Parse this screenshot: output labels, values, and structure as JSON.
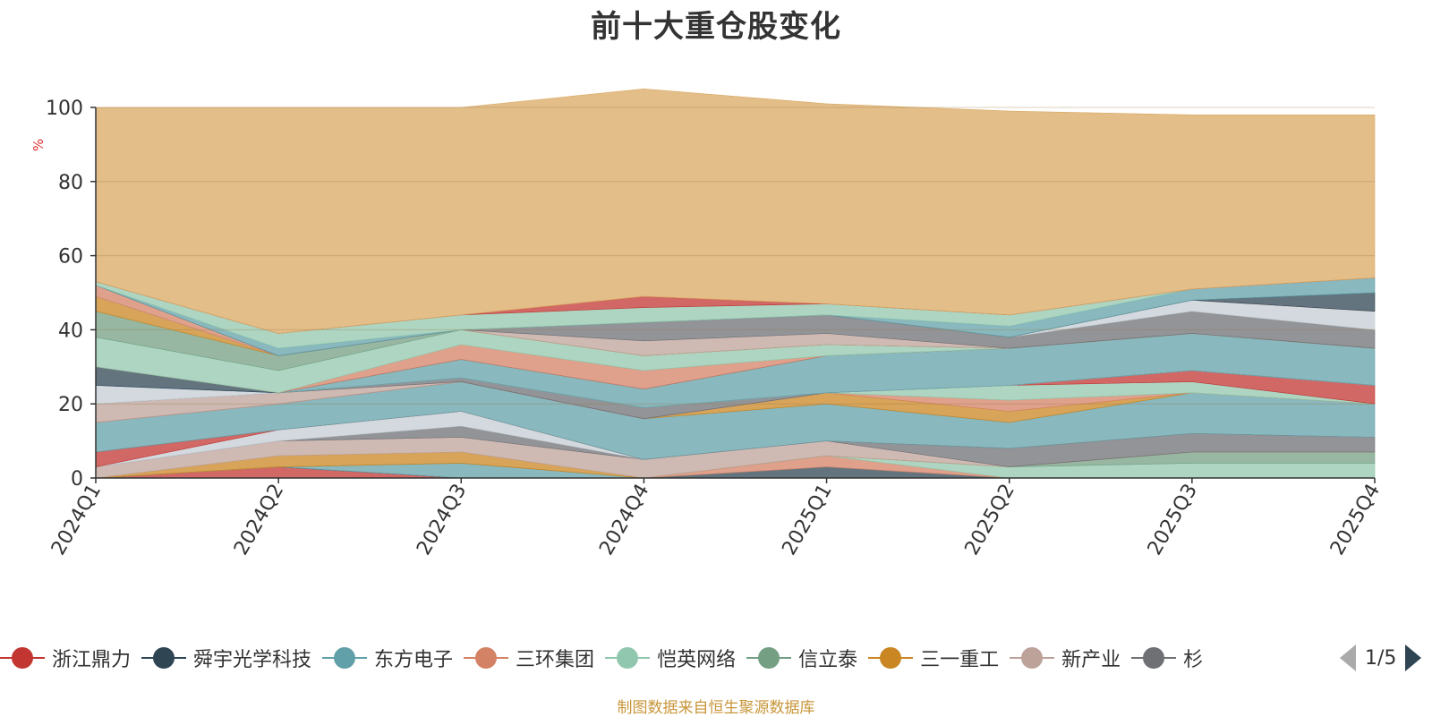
{
  "chart_data": {
    "type": "area",
    "title": "前十大重仓股变化",
    "ylabel": "%",
    "ylim": [
      0,
      100
    ],
    "yticks": [
      0,
      20,
      40,
      60,
      80,
      100
    ],
    "grid": true,
    "categories": [
      "2024Q1",
      "2024Q2",
      "2024Q3",
      "2024Q4",
      "2025Q1",
      "2025Q2",
      "2025Q3",
      "2025Q4"
    ],
    "series": [
      {
        "color": "#c23531",
        "values": [
          0,
          3,
          0,
          0,
          0,
          0,
          0,
          0
        ]
      },
      {
        "color": "#2f4554",
        "values": [
          0,
          0,
          0,
          0,
          3,
          0,
          0,
          0
        ]
      },
      {
        "color": "#61a0a8",
        "values": [
          0,
          0,
          4,
          0,
          0,
          0,
          0,
          0
        ]
      },
      {
        "color": "#d48265",
        "values": [
          0,
          0,
          0,
          0,
          3,
          0,
          0,
          0
        ]
      },
      {
        "color": "#91c7ae",
        "values": [
          0,
          0,
          0,
          0,
          0,
          3,
          4,
          4
        ]
      },
      {
        "color": "#749f83",
        "values": [
          0,
          0,
          0,
          0,
          0,
          0,
          3,
          3
        ]
      },
      {
        "color": "#ca8622",
        "values": [
          0,
          3,
          3,
          0,
          0,
          0,
          0,
          0
        ]
      },
      {
        "color": "#bda29a",
        "values": [
          3,
          4,
          4,
          5,
          4,
          0,
          0,
          0
        ]
      },
      {
        "color": "#6e7074",
        "values": [
          0,
          0,
          3,
          0,
          0,
          5,
          5,
          4
        ]
      },
      {
        "color": "#c4ccd3",
        "values": [
          0,
          3,
          4,
          0,
          0,
          0,
          0,
          0
        ]
      },
      {
        "color": "#c23531",
        "values": [
          4,
          0,
          0,
          0,
          0,
          0,
          0,
          0
        ]
      },
      {
        "color": "#61a0a8",
        "values": [
          8,
          7,
          8,
          11,
          10,
          7,
          11,
          9
        ]
      },
      {
        "color": "#ca8622",
        "values": [
          0,
          0,
          0,
          0,
          3,
          3,
          0,
          0
        ]
      },
      {
        "color": "#d48265",
        "values": [
          0,
          0,
          0,
          0,
          0,
          3,
          0,
          0
        ]
      },
      {
        "color": "#91c7ae",
        "values": [
          0,
          0,
          0,
          0,
          0,
          4,
          3,
          0
        ]
      },
      {
        "color": "#c23531",
        "values": [
          0,
          0,
          0,
          0,
          0,
          0,
          3,
          5
        ]
      },
      {
        "color": "#bda29a",
        "values": [
          5,
          3,
          0,
          0,
          0,
          0,
          0,
          0
        ]
      },
      {
        "color": "#6e7074",
        "values": [
          0,
          0,
          1,
          3,
          0,
          0,
          0,
          0
        ]
      },
      {
        "color": "#c4ccd3",
        "values": [
          5,
          0,
          0,
          0,
          0,
          0,
          0,
          0
        ]
      },
      {
        "color": "#61a0a8",
        "values": [
          0,
          0,
          5,
          5,
          10,
          10,
          10,
          10
        ]
      },
      {
        "color": "#2f4554",
        "values": [
          5,
          0,
          0,
          0,
          0,
          0,
          0,
          0
        ]
      },
      {
        "color": "#d48265",
        "values": [
          0,
          0,
          4,
          5,
          0,
          0,
          0,
          0
        ]
      },
      {
        "color": "#91c7ae",
        "values": [
          8,
          6,
          4,
          4,
          3,
          0,
          0,
          0
        ]
      },
      {
        "color": "#749f83",
        "values": [
          7,
          4,
          0,
          0,
          0,
          0,
          0,
          0
        ]
      },
      {
        "color": "#ca8622",
        "values": [
          4,
          0,
          0,
          0,
          0,
          0,
          0,
          0
        ]
      },
      {
        "color": "#bda29a",
        "values": [
          0,
          0,
          0,
          4,
          3,
          0,
          0,
          0
        ]
      },
      {
        "color": "#6e7074",
        "values": [
          0,
          0,
          0,
          5,
          5,
          3,
          6,
          5
        ]
      },
      {
        "color": "#c4ccd3",
        "values": [
          0,
          0,
          0,
          0,
          0,
          0,
          3,
          5
        ]
      },
      {
        "color": "#d48265",
        "values": [
          3,
          0,
          0,
          0,
          0,
          0,
          0,
          0
        ]
      },
      {
        "color": "#2f4554",
        "values": [
          0,
          0,
          0,
          0,
          0,
          0,
          0,
          5
        ]
      },
      {
        "color": "#61a0a8",
        "values": [
          0,
          2,
          0,
          0,
          0,
          3,
          3,
          4
        ]
      },
      {
        "color": "#91c7ae",
        "values": [
          1,
          4,
          4,
          4,
          3,
          3,
          0,
          0
        ]
      },
      {
        "color": "#c23531",
        "values": [
          0,
          0,
          0,
          3,
          0,
          0,
          0,
          0
        ]
      },
      {
        "color": "#d9a862",
        "values": [
          47,
          61,
          56,
          56,
          54,
          55,
          47,
          44
        ]
      }
    ]
  },
  "legend": {
    "items": [
      {
        "label": "浙江鼎力",
        "color": "#c23531"
      },
      {
        "label": "舜宇光学科技",
        "color": "#2f4554"
      },
      {
        "label": "东方电子",
        "color": "#61a0a8"
      },
      {
        "label": "三环集团",
        "color": "#d48265"
      },
      {
        "label": "恺英网络",
        "color": "#91c7ae"
      },
      {
        "label": "信立泰",
        "color": "#749f83"
      },
      {
        "label": "三一重工",
        "color": "#ca8622"
      },
      {
        "label": "新产业",
        "color": "#bda29a"
      },
      {
        "label": "杉",
        "color": "#6e7074"
      }
    ],
    "page_indicator": "1/5"
  },
  "source_note": "制图数据来自恒生聚源数据库"
}
